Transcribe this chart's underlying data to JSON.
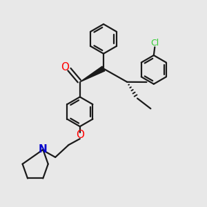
{
  "bg_color": "#e8e8e8",
  "bond_color": "#1a1a1a",
  "oxygen_color": "#ff0000",
  "nitrogen_color": "#0000cc",
  "chlorine_color": "#33cc33",
  "line_width": 1.6,
  "figsize": [
    3.0,
    3.0
  ],
  "dpi": 100,
  "xlim": [
    0,
    10
  ],
  "ylim": [
    0,
    10
  ]
}
